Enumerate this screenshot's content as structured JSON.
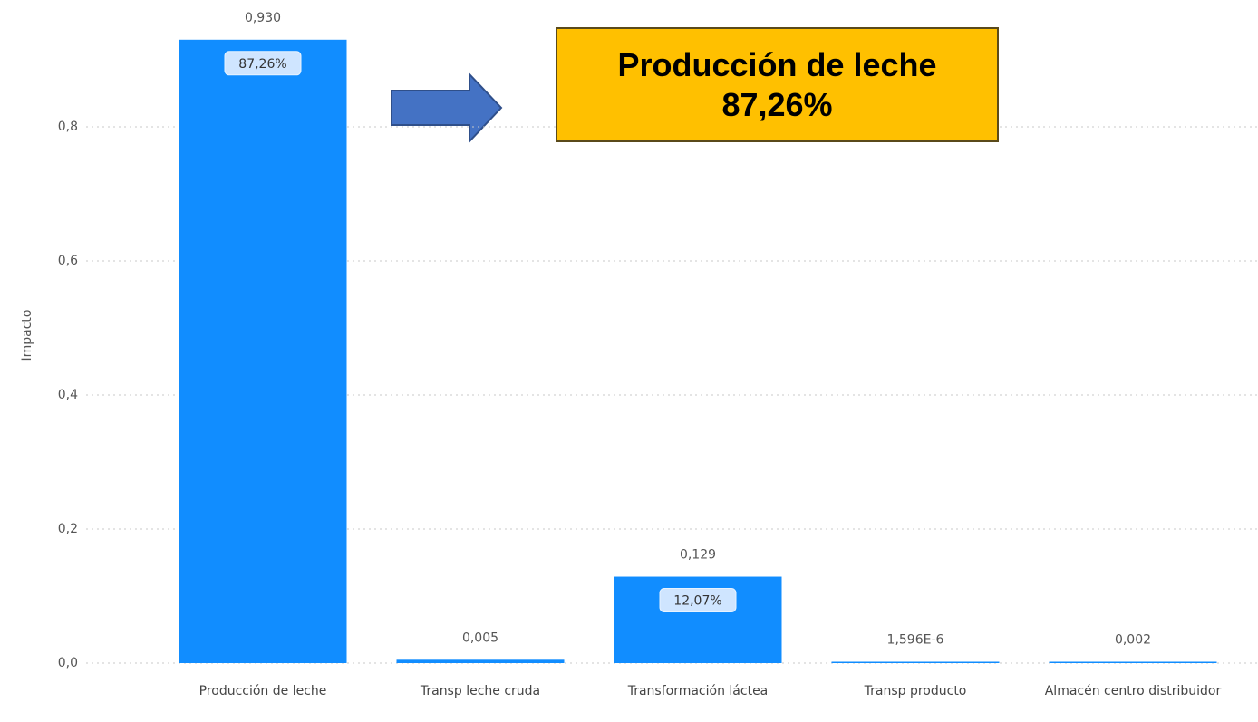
{
  "chart_data": {
    "type": "bar",
    "y_label": "Impacto",
    "categories": [
      "Producción de leche",
      "Transp leche cruda",
      "Transformación láctea",
      "Transp producto",
      "Almacén centro distribuidor"
    ],
    "values": [
      0.93,
      0.005,
      0.129,
      1.596e-06,
      0.002
    ],
    "value_labels": [
      "0,930",
      "0,005",
      "0,129",
      "1,596E-6",
      "0,002"
    ],
    "share_labels": [
      "87,26%",
      null,
      "12,07%",
      null,
      null
    ],
    "color": "#118dff",
    "ylim": [
      0,
      0.95
    ],
    "yticks": [
      {
        "value": 0,
        "label": "0,0"
      },
      {
        "value": 0.2,
        "label": "0,2"
      },
      {
        "value": 0.4,
        "label": "0,4"
      },
      {
        "value": 0.6,
        "label": "0,6"
      },
      {
        "value": 0.8,
        "label": "0,8"
      }
    ],
    "grid": true,
    "annotation": {
      "lines": [
        "Producción de leche",
        "87,26%"
      ]
    }
  }
}
